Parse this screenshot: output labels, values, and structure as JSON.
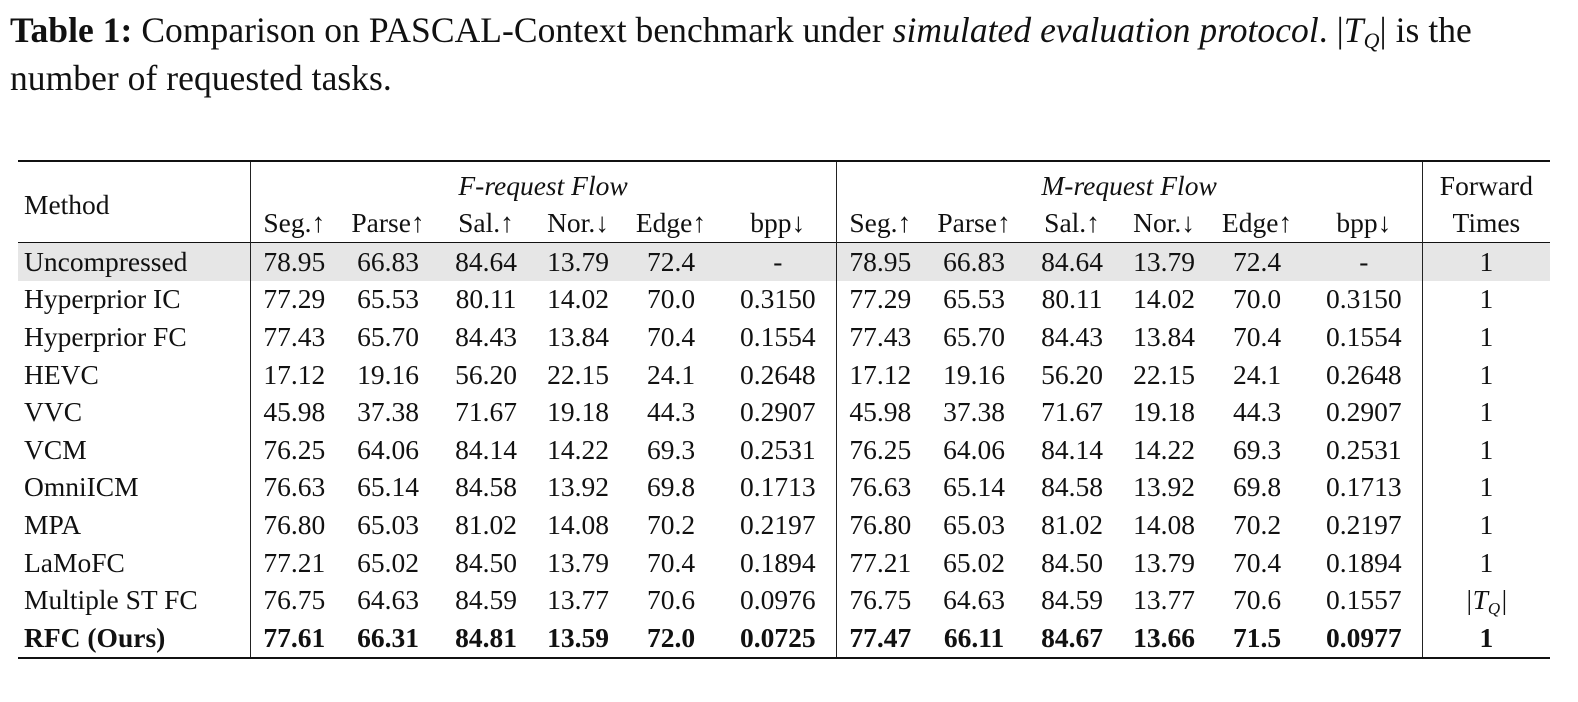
{
  "caption": {
    "label": "Table 1:",
    "text_before": "Comparison on PASCAL-Context benchmark under",
    "italic_phrase": "simulated evaluation protocol",
    "text_after": "is the number of requested tasks.",
    "symbol_base": "T",
    "symbol_sub": "Q"
  },
  "table": {
    "method_header": "Method",
    "groups": [
      "F-request Flow",
      "M-request Flow"
    ],
    "forward_header": [
      "Forward",
      "Times"
    ],
    "columns": [
      "Seg.↑",
      "Parse↑",
      "Sal.↑",
      "Nor.↓",
      "Edge↑",
      "bpp↓"
    ],
    "rows": [
      {
        "method": "Uncompressed",
        "f": [
          "78.95",
          "66.83",
          "84.64",
          "13.79",
          "72.4",
          "-"
        ],
        "m": [
          "78.95",
          "66.83",
          "84.64",
          "13.79",
          "72.4",
          "-"
        ],
        "times": "1"
      },
      {
        "method": "Hyperprior IC",
        "f": [
          "77.29",
          "65.53",
          "80.11",
          "14.02",
          "70.0",
          "0.3150"
        ],
        "m": [
          "77.29",
          "65.53",
          "80.11",
          "14.02",
          "70.0",
          "0.3150"
        ],
        "times": "1"
      },
      {
        "method": "Hyperprior FC",
        "f": [
          "77.43",
          "65.70",
          "84.43",
          "13.84",
          "70.4",
          "0.1554"
        ],
        "m": [
          "77.43",
          "65.70",
          "84.43",
          "13.84",
          "70.4",
          "0.1554"
        ],
        "times": "1"
      },
      {
        "method": "HEVC",
        "f": [
          "17.12",
          "19.16",
          "56.20",
          "22.15",
          "24.1",
          "0.2648"
        ],
        "m": [
          "17.12",
          "19.16",
          "56.20",
          "22.15",
          "24.1",
          "0.2648"
        ],
        "times": "1"
      },
      {
        "method": "VVC",
        "f": [
          "45.98",
          "37.38",
          "71.67",
          "19.18",
          "44.3",
          "0.2907"
        ],
        "m": [
          "45.98",
          "37.38",
          "71.67",
          "19.18",
          "44.3",
          "0.2907"
        ],
        "times": "1"
      },
      {
        "method": "VCM",
        "f": [
          "76.25",
          "64.06",
          "84.14",
          "14.22",
          "69.3",
          "0.2531"
        ],
        "m": [
          "76.25",
          "64.06",
          "84.14",
          "14.22",
          "69.3",
          "0.2531"
        ],
        "times": "1"
      },
      {
        "method": "OmniICM",
        "f": [
          "76.63",
          "65.14",
          "84.58",
          "13.92",
          "69.8",
          "0.1713"
        ],
        "m": [
          "76.63",
          "65.14",
          "84.58",
          "13.92",
          "69.8",
          "0.1713"
        ],
        "times": "1"
      },
      {
        "method": "MPA",
        "f": [
          "76.80",
          "65.03",
          "81.02",
          "14.08",
          "70.2",
          "0.2197"
        ],
        "m": [
          "76.80",
          "65.03",
          "81.02",
          "14.08",
          "70.2",
          "0.2197"
        ],
        "times": "1"
      },
      {
        "method": "LaMoFC",
        "f": [
          "77.21",
          "65.02",
          "84.50",
          "13.79",
          "70.4",
          "0.1894"
        ],
        "m": [
          "77.21",
          "65.02",
          "84.50",
          "13.79",
          "70.4",
          "0.1894"
        ],
        "times": "1"
      },
      {
        "method": "Multiple ST FC",
        "f": [
          "76.75",
          "64.63",
          "84.59",
          "13.77",
          "70.6",
          "0.0976"
        ],
        "m": [
          "76.75",
          "64.63",
          "84.59",
          "13.77",
          "70.6",
          "0.1557"
        ],
        "times_symbol": true
      },
      {
        "method": "RFC (Ours)",
        "f": [
          "77.61",
          "66.31",
          "84.81",
          "13.59",
          "72.0",
          "0.0725"
        ],
        "m": [
          "77.47",
          "66.11",
          "84.67",
          "13.66",
          "71.5",
          "0.0977"
        ],
        "times": "1",
        "bold": true
      }
    ]
  }
}
